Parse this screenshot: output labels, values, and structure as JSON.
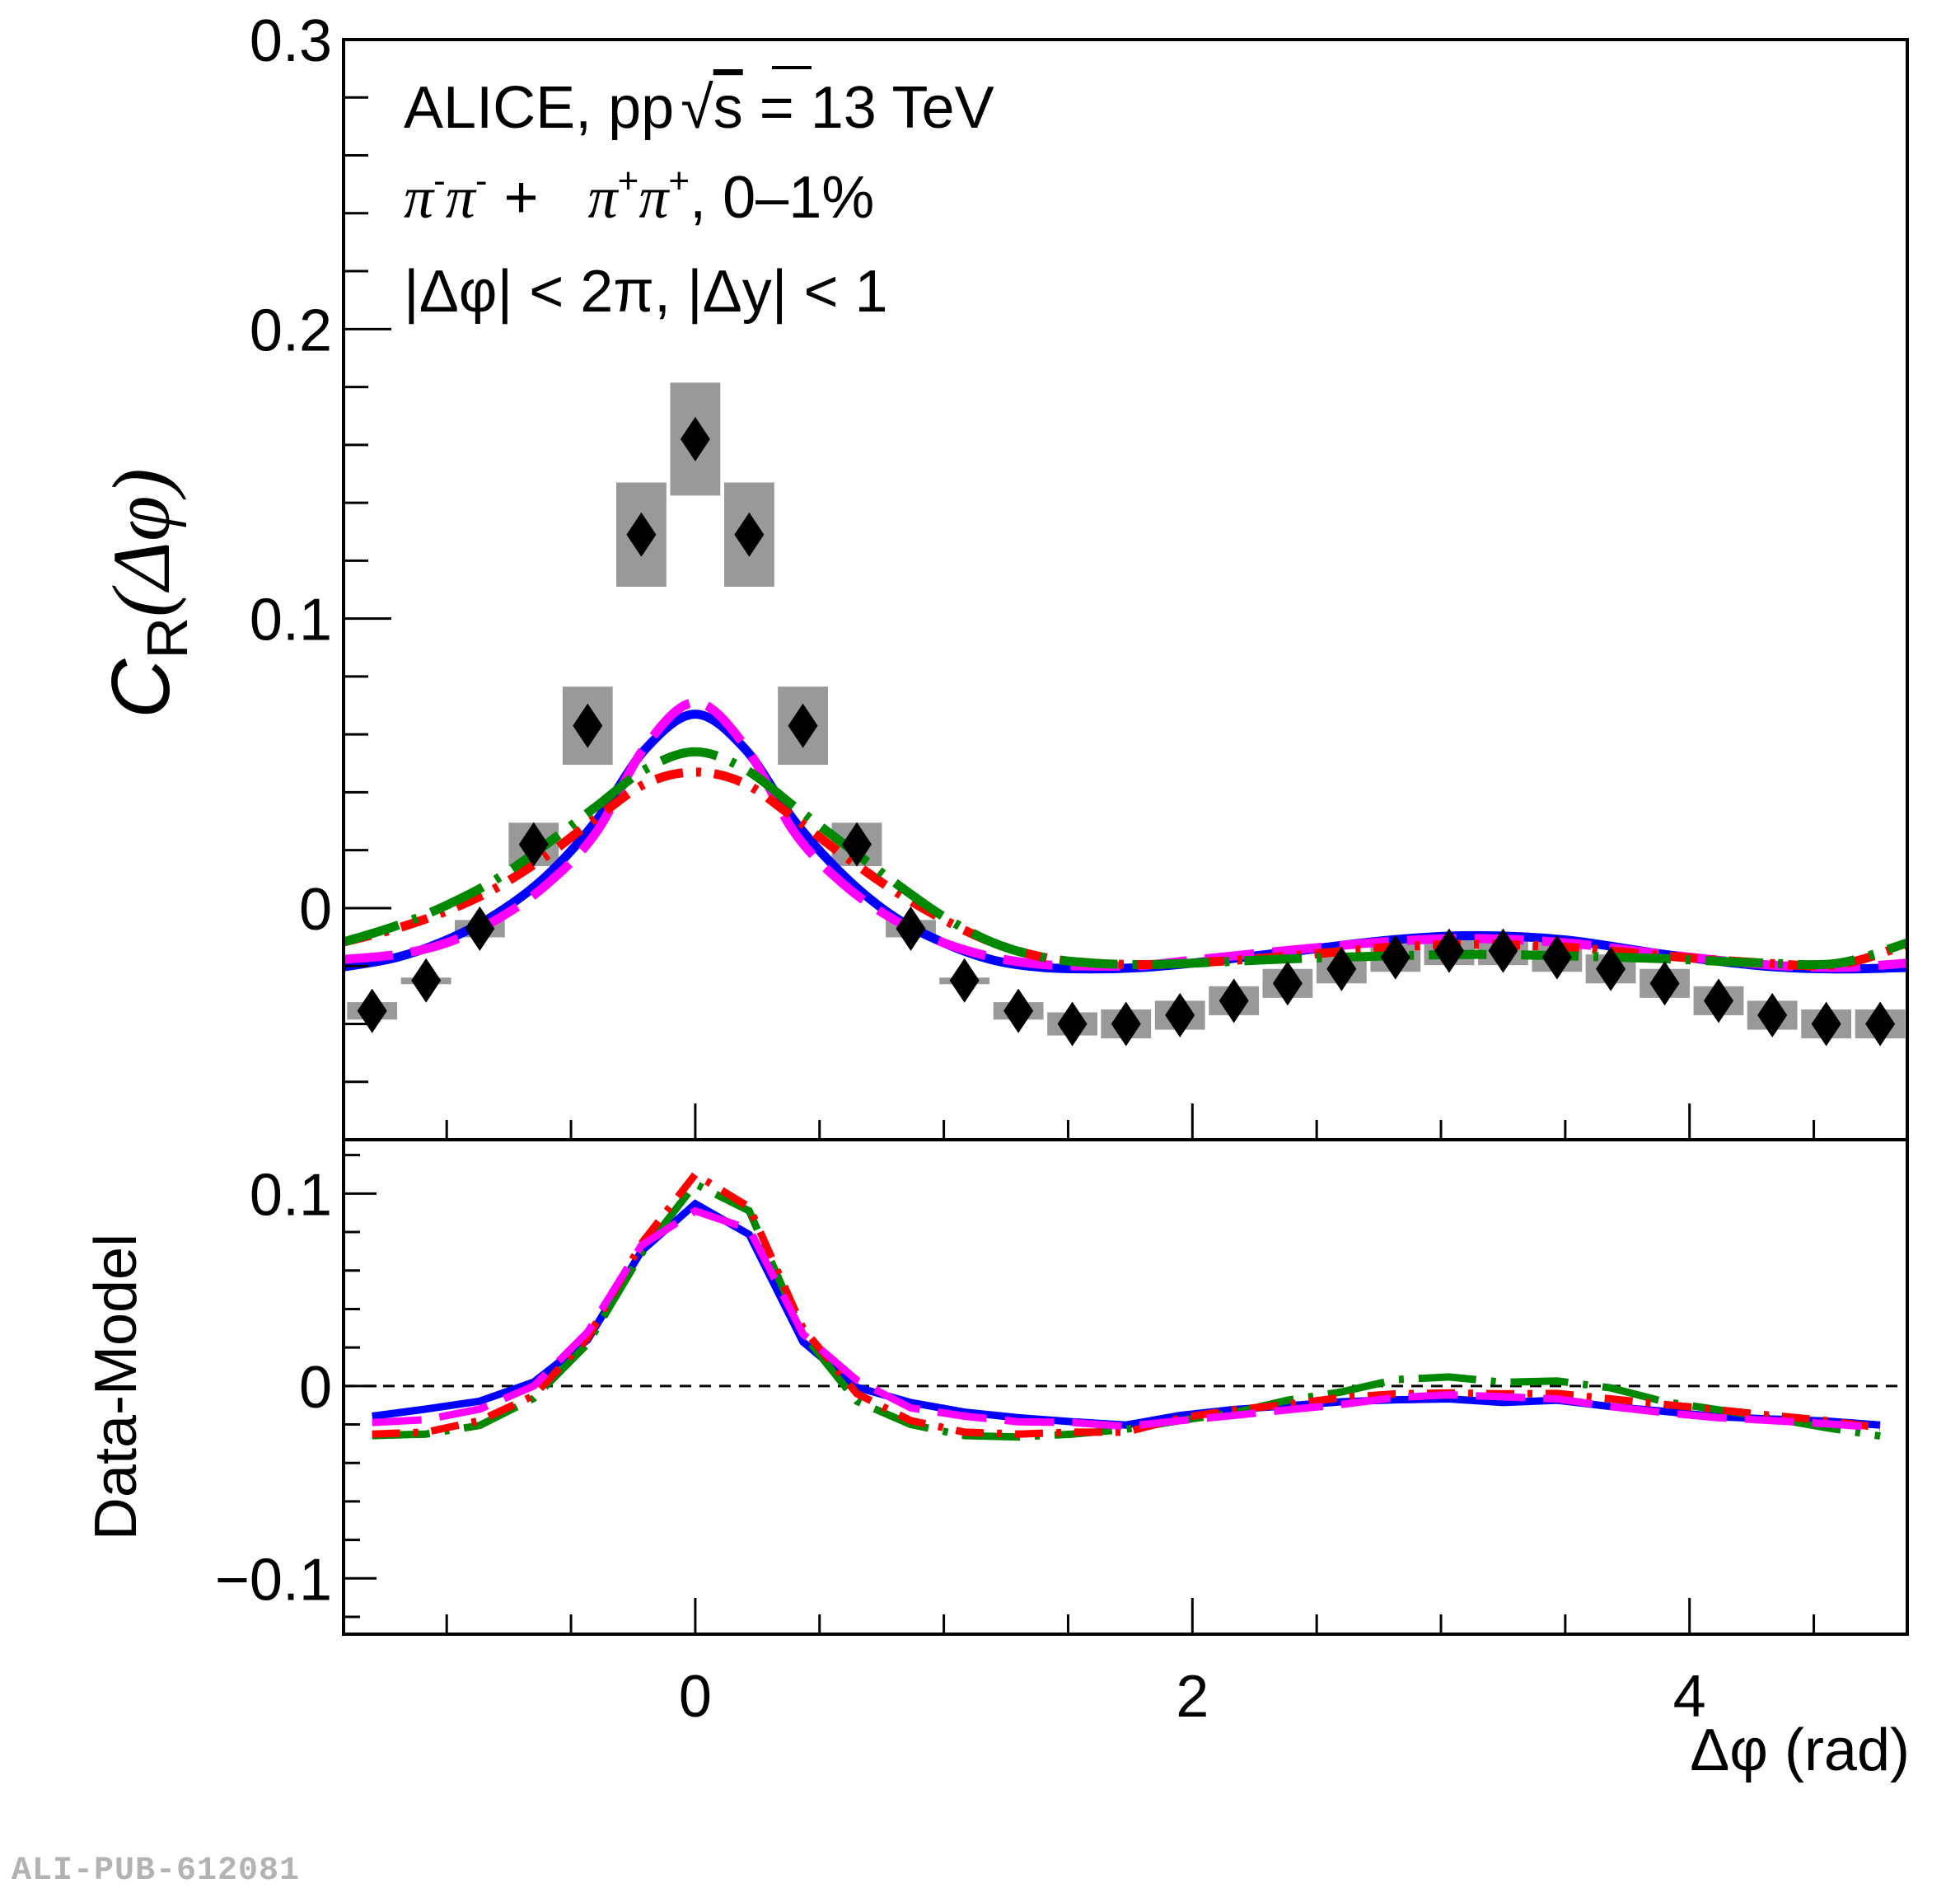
{
  "figure_id": "ALI-PUB-612081",
  "chart_data": [
    {
      "panel": "upper",
      "type": "scatter",
      "ylabel_main": "C",
      "ylabel_sub": "R",
      "ylabel_arg": "(Δφ)",
      "xlabel": "Δφ (rad)",
      "xlim": [
        -1.415,
        4.876
      ],
      "ylim": [
        -0.08,
        0.3
      ],
      "yticks_major": [
        0,
        0.1,
        0.2,
        0.3
      ],
      "ytick_labels": [
        "0",
        "0.1",
        "0.2",
        "0.3"
      ],
      "ytick_minor_step": 0.02,
      "xticks_major": [
        0,
        2,
        4
      ],
      "xtick_minor_step": 0.5,
      "grid": false,
      "annotations": {
        "line1_prefix": "ALICE, pp",
        "line1_sqrt": "√",
        "line1_s": "s",
        "line1_suffix": " = 13 TeV",
        "line2_a": "π",
        "line2_a_sup": "-",
        "line2_b": "π",
        "line2_b_sup": "-",
        "line2_plus": " +   ",
        "line2_c": "π",
        "line2_c_sup": "+",
        "line2_d": "π",
        "line2_d_sup": "+",
        "line2_suffix": ", 0–1%",
        "line3": "|Δφ| < 2π, |Δy| < 1"
      },
      "data_series": {
        "name": "Data",
        "marker": "diamond",
        "color": "#000000",
        "syst_color": "#999999",
        "bin_width": 0.2167,
        "x": [
          -1.3,
          -1.083,
          -0.867,
          -0.65,
          -0.433,
          -0.217,
          0.0,
          0.217,
          0.433,
          0.65,
          0.867,
          1.083,
          1.3,
          1.517,
          1.733,
          1.95,
          2.167,
          2.383,
          2.6,
          2.817,
          3.033,
          3.25,
          3.467,
          3.683,
          3.9,
          4.117,
          4.333,
          4.55,
          4.767
        ],
        "y": [
          -0.0355,
          -0.025,
          -0.0071,
          0.022,
          0.063,
          0.129,
          0.162,
          0.129,
          0.063,
          0.022,
          -0.0071,
          -0.025,
          -0.0355,
          -0.04,
          -0.04,
          -0.037,
          -0.032,
          -0.026,
          -0.021,
          -0.017,
          -0.0147,
          -0.0147,
          -0.017,
          -0.021,
          -0.026,
          -0.032,
          -0.037,
          -0.04,
          -0.04
        ],
        "syst": [
          0.003,
          0.001,
          0.003,
          0.0075,
          0.0135,
          0.018,
          0.0195,
          0.018,
          0.0135,
          0.0075,
          0.003,
          0.001,
          0.003,
          0.004,
          0.005,
          0.005,
          0.005,
          0.005,
          0.005,
          0.005,
          0.005,
          0.005,
          0.005,
          0.005,
          0.005,
          0.005,
          0.005,
          0.005,
          0.005
        ]
      },
      "model_curves": [
        {
          "name": "model-blue",
          "style": "solid",
          "color": "#0000ff",
          "x": [
            -1.415,
            -1.2,
            -1.0,
            -0.8,
            -0.6,
            -0.4,
            -0.2,
            0,
            0.2,
            0.4,
            0.6,
            0.8,
            1.0,
            1.2,
            1.4,
            1.6,
            1.8,
            2.0,
            2.4,
            2.8,
            3.14,
            3.5,
            3.9,
            4.3,
            4.6,
            4.876
          ],
          "y": [
            -0.0203,
            -0.017,
            -0.011,
            -0.002,
            0.011,
            0.03,
            0.055,
            0.067,
            0.055,
            0.03,
            0.011,
            -0.003,
            -0.012,
            -0.018,
            -0.0205,
            -0.021,
            -0.0205,
            -0.019,
            -0.015,
            -0.011,
            -0.0095,
            -0.011,
            -0.016,
            -0.02,
            -0.021,
            -0.0205
          ]
        },
        {
          "name": "model-magenta",
          "style": "long-dash",
          "color": "#ff00ff",
          "x": [
            -1.415,
            -1.2,
            -1.0,
            -0.8,
            -0.6,
            -0.4,
            -0.2,
            0,
            0.2,
            0.4,
            0.6,
            0.8,
            1.0,
            1.2,
            1.4,
            1.6,
            1.8,
            2.0,
            2.4,
            2.8,
            3.14,
            3.5,
            3.9,
            4.3,
            4.6,
            4.876
          ],
          "y": [
            -0.0177,
            -0.016,
            -0.012,
            -0.004,
            0.008,
            0.026,
            0.056,
            0.071,
            0.056,
            0.026,
            0.008,
            -0.004,
            -0.012,
            -0.017,
            -0.0195,
            -0.02,
            -0.0198,
            -0.018,
            -0.0145,
            -0.0115,
            -0.0105,
            -0.012,
            -0.016,
            -0.0195,
            -0.0205,
            -0.019
          ]
        },
        {
          "name": "model-red",
          "style": "dash-dot",
          "color": "#ff0000",
          "x": [
            -1.415,
            -1.2,
            -1.0,
            -0.8,
            -0.6,
            -0.4,
            -0.2,
            0,
            0.2,
            0.4,
            0.6,
            0.8,
            1.0,
            1.2,
            1.4,
            1.6,
            1.8,
            2.0,
            2.4,
            2.8,
            3.14,
            3.5,
            3.9,
            4.3,
            4.6,
            4.876
          ],
          "y": [
            -0.0117,
            -0.007,
            -0.001,
            0.007,
            0.018,
            0.031,
            0.043,
            0.047,
            0.043,
            0.031,
            0.018,
            0.006,
            -0.004,
            -0.012,
            -0.017,
            -0.019,
            -0.0195,
            -0.019,
            -0.0165,
            -0.0135,
            -0.0125,
            -0.0135,
            -0.0165,
            -0.019,
            -0.0195,
            -0.0125
          ]
        },
        {
          "name": "model-green",
          "style": "long-dash-dot",
          "color": "#008800",
          "x": [
            -1.415,
            -1.2,
            -1.0,
            -0.8,
            -0.6,
            -0.4,
            -0.2,
            0,
            0.2,
            0.4,
            0.6,
            0.8,
            1.0,
            1.2,
            1.4,
            1.6,
            1.8,
            2.0,
            2.4,
            2.8,
            3.14,
            3.5,
            3.9,
            4.3,
            4.6,
            4.876
          ],
          "y": [
            -0.0117,
            -0.006,
            0.001,
            0.01,
            0.022,
            0.035,
            0.048,
            0.054,
            0.048,
            0.035,
            0.022,
            0.009,
            -0.003,
            -0.012,
            -0.017,
            -0.019,
            -0.0195,
            -0.019,
            -0.0175,
            -0.0165,
            -0.016,
            -0.0165,
            -0.0175,
            -0.019,
            -0.019,
            -0.012
          ]
        }
      ]
    },
    {
      "panel": "lower",
      "type": "line",
      "ylabel": "Data-Model",
      "xlabel": "Δφ (rad)",
      "xlim": [
        -1.415,
        4.876
      ],
      "ylim": [
        -0.129,
        0.128
      ],
      "yticks_major": [
        -0.1,
        0,
        0.1
      ],
      "ytick_labels": [
        "−0.1",
        "0",
        "0.1"
      ],
      "ytick_minor_step": 0.02,
      "xticks_major": [
        0,
        2,
        4
      ],
      "xtick_labels": [
        "0",
        "2",
        "4"
      ],
      "xtick_minor_step": 0.5,
      "reference_line": 0,
      "x": [
        -1.3,
        -1.083,
        -0.867,
        -0.65,
        -0.433,
        -0.217,
        0.0,
        0.217,
        0.433,
        0.65,
        0.867,
        1.083,
        1.3,
        1.517,
        1.733,
        1.95,
        2.167,
        2.383,
        2.6,
        2.817,
        3.033,
        3.25,
        3.467,
        3.683,
        3.9,
        4.117,
        4.333,
        4.55,
        4.767
      ],
      "series": [
        {
          "name": "model-blue",
          "style": "solid",
          "color": "#0000ff",
          "values": [
            -0.0157,
            -0.012,
            -0.0079,
            0.002,
            0.024,
            0.07,
            0.0947,
            0.0787,
            0.023,
            -0.0007,
            -0.0086,
            -0.0136,
            -0.0165,
            -0.0186,
            -0.0203,
            -0.0153,
            -0.0122,
            -0.0103,
            -0.0082,
            -0.0072,
            -0.0067,
            -0.0086,
            -0.0074,
            -0.0107,
            -0.0132,
            -0.016,
            -0.0172,
            -0.0182,
            -0.0203
          ]
        },
        {
          "name": "model-green",
          "style": "long-dash-dot",
          "color": "#008800",
          "values": [
            -0.0258,
            -0.025,
            -0.0205,
            -0.0064,
            0.022,
            0.0687,
            0.105,
            0.091,
            0.027,
            -0.0079,
            -0.02,
            -0.0258,
            -0.0265,
            -0.025,
            -0.0225,
            -0.018,
            -0.0139,
            -0.0074,
            -0.0031,
            0.0033,
            0.0047,
            0.0019,
            0.0026,
            -0.001,
            -0.0082,
            -0.0124,
            -0.0167,
            -0.0217,
            -0.026
          ]
        },
        {
          "name": "model-red",
          "style": "dash-dot",
          "color": "#ff0000",
          "values": [
            -0.025,
            -0.024,
            -0.018,
            -0.005,
            0.025,
            0.074,
            0.11,
            0.093,
            0.03,
            -0.004,
            -0.018,
            -0.024,
            -0.025,
            -0.024,
            -0.024,
            -0.0167,
            -0.0124,
            -0.0096,
            -0.006,
            -0.0041,
            -0.0036,
            -0.0041,
            -0.0039,
            -0.0067,
            -0.0096,
            -0.0124,
            -0.0153,
            -0.018,
            -0.0217
          ]
        },
        {
          "name": "model-magenta",
          "style": "long-dash",
          "color": "#ff00ff",
          "values": [
            -0.019,
            -0.0175,
            -0.012,
            0.0,
            0.028,
            0.073,
            0.091,
            0.0815,
            0.027,
            0.003,
            -0.0114,
            -0.0157,
            -0.0186,
            -0.019,
            -0.021,
            -0.018,
            -0.0153,
            -0.0124,
            -0.0096,
            -0.006,
            -0.0046,
            -0.0056,
            -0.0067,
            -0.0107,
            -0.0139,
            -0.0165,
            -0.018,
            -0.0196,
            -0.0217
          ]
        }
      ]
    }
  ]
}
